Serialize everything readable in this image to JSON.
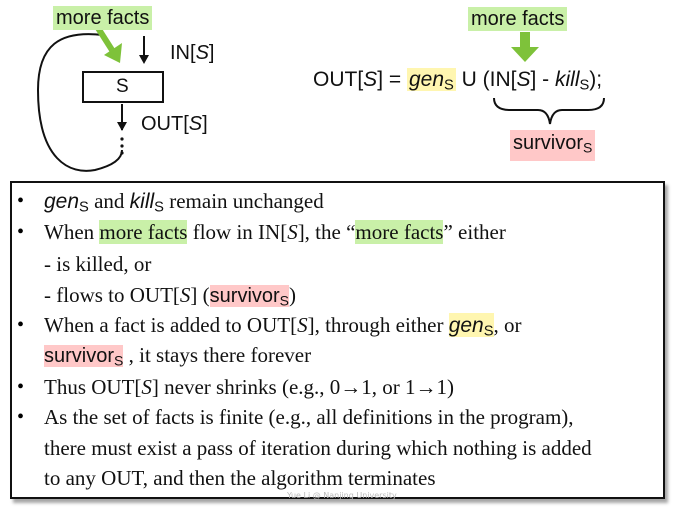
{
  "diagram": {
    "left": {
      "more_facts": "more facts",
      "in_label": "IN[S]",
      "box_label": "S",
      "out_label": "OUT[S]"
    },
    "right": {
      "more_facts": "more facts",
      "equation": {
        "lhs": "OUT[S] = ",
        "gen": "gen",
        "gen_sub": "S",
        "union": " U (IN[S] - ",
        "kill": "kill",
        "kill_sub": "S",
        "tail": ");"
      },
      "survivor": "survivor",
      "survivor_sub": "S"
    }
  },
  "panel": {
    "b1": {
      "gen": "gen",
      "gen_sub": "S",
      "and": " and ",
      "kill": "kill",
      "kill_sub": "S",
      "rest": " remain unchanged"
    },
    "b2": {
      "pre": "When ",
      "mf1": "more facts",
      "mid": " flow in IN[",
      "s": "S",
      "mid2": "], the “",
      "mf2": "more facts",
      "post": "” either"
    },
    "b2a": "- is killed, or",
    "b2b": {
      "pre": "- flows to OUT[",
      "s": "S",
      "mid": "] (",
      "surv": "survivor",
      "surv_sub": "S",
      "post": ")"
    },
    "b3": {
      "pre": "When a fact is added to OUT[",
      "s": "S",
      "mid": "], through either ",
      "gen": "gen",
      "gen_sub": "S",
      "post": ", or"
    },
    "b3b": {
      "surv": "survivor",
      "surv_sub": "S",
      "post": " , it stays there forever"
    },
    "b4": {
      "pre": "Thus OUT[",
      "s": "S",
      "post": "] never shrinks (e.g., 0→1, or 1→1)"
    },
    "b5": {
      "l1": "As the set of facts is finite (e.g., all definitions in the program),",
      "l2": "there must exist a pass of iteration during which nothing is added",
      "l3": "to any OUT, and then the algorithm terminates"
    },
    "watermark": "Yue Li @ Nanjing University"
  },
  "colors": {
    "green": "#c9f0a8",
    "arrow_green": "#7ec23a",
    "yellow": "#fff6b0",
    "pink": "#ffc8c8"
  }
}
